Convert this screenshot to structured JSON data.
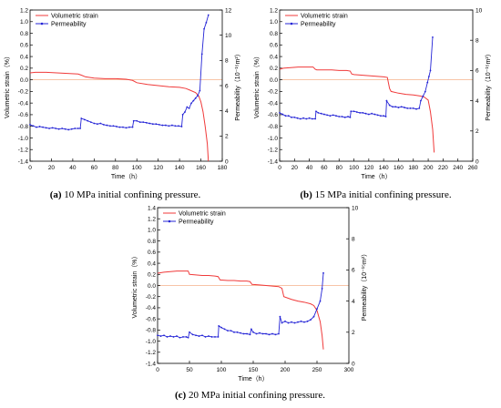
{
  "captions": [
    {
      "label": "(a)",
      "text": " 10 MPa initial confining pressure."
    },
    {
      "label": "(b)",
      "text": " 15 MPa initial confining pressure."
    },
    {
      "label": "(c)",
      "text": " 20 MPa initial confining pressure."
    }
  ],
  "colors": {
    "strain": "#f03a3a",
    "permeability": "#2424d6",
    "zero_line": "#f5b08a",
    "axis": "#000000"
  },
  "chart_data": [
    {
      "type": "line",
      "xlabel": "Time（h）",
      "ylabel_left": "Volumetric strain（%）",
      "ylabel_right": "Permeability（10⁻¹⁵m²）",
      "xlim": [
        0,
        180
      ],
      "xticks": [
        0,
        20,
        40,
        60,
        80,
        100,
        120,
        140,
        160,
        180
      ],
      "ylim_left": [
        -1.4,
        1.2
      ],
      "yticks_left": [
        -1.4,
        -1.2,
        -1.0,
        -0.8,
        -0.6,
        -0.4,
        -0.2,
        0.0,
        0.2,
        0.4,
        0.6,
        0.8,
        1.0,
        1.2
      ],
      "ylim_right": [
        0,
        12
      ],
      "yticks_right": [
        0,
        2,
        4,
        6,
        8,
        10,
        12
      ],
      "legend": [
        "Volumetric strain",
        "Permeability"
      ],
      "legend_position": "top-left",
      "strain": {
        "x": [
          0,
          5,
          15,
          25,
          35,
          45,
          48,
          52,
          60,
          70,
          80,
          90,
          96,
          100,
          110,
          120,
          130,
          140,
          146,
          150,
          155,
          158,
          160,
          162,
          164,
          166,
          167
        ],
        "y": [
          0.12,
          0.13,
          0.13,
          0.12,
          0.11,
          0.1,
          0.08,
          0.05,
          0.03,
          0.02,
          0.02,
          0.01,
          -0.01,
          -0.05,
          -0.08,
          -0.1,
          -0.12,
          -0.13,
          -0.15,
          -0.18,
          -0.22,
          -0.28,
          -0.38,
          -0.55,
          -0.8,
          -1.1,
          -1.4
        ]
      },
      "permeability": {
        "x": [
          0,
          3,
          6,
          9,
          12,
          15,
          18,
          21,
          24,
          27,
          30,
          33,
          36,
          39,
          42,
          45,
          47,
          48,
          51,
          54,
          57,
          60,
          63,
          66,
          69,
          72,
          75,
          78,
          81,
          84,
          87,
          90,
          93,
          96,
          97,
          100,
          103,
          106,
          109,
          112,
          115,
          118,
          121,
          124,
          127,
          130,
          133,
          136,
          139,
          142,
          143,
          145,
          147,
          149,
          151,
          153,
          155,
          157,
          159,
          161,
          163,
          165,
          167
        ],
        "y": [
          2.9,
          2.8,
          2.7,
          2.75,
          2.7,
          2.65,
          2.6,
          2.65,
          2.6,
          2.55,
          2.6,
          2.55,
          2.5,
          2.55,
          2.6,
          2.6,
          2.6,
          3.4,
          3.3,
          3.2,
          3.1,
          3.0,
          2.95,
          3.0,
          2.9,
          2.85,
          2.8,
          2.8,
          2.75,
          2.7,
          2.7,
          2.65,
          2.7,
          2.7,
          3.2,
          3.2,
          3.1,
          3.1,
          3.05,
          3.0,
          2.95,
          2.95,
          2.9,
          2.85,
          2.85,
          2.8,
          2.85,
          2.8,
          2.8,
          2.75,
          3.7,
          3.9,
          4.3,
          4.2,
          4.6,
          4.8,
          5.0,
          5.2,
          5.6,
          8.5,
          10.5,
          11.0,
          11.6
        ]
      }
    },
    {
      "type": "line",
      "xlabel": "Time（h）",
      "ylabel_left": "Volumetric strain（%）",
      "ylabel_right": "Permeability（10⁻¹⁵m²）",
      "xlim": [
        0,
        260
      ],
      "xticks": [
        0,
        20,
        40,
        60,
        80,
        100,
        120,
        140,
        160,
        180,
        200,
        220,
        240,
        260
      ],
      "ylim_left": [
        -1.4,
        1.2
      ],
      "yticks_left": [
        -1.4,
        -1.2,
        -1.0,
        -0.8,
        -0.6,
        -0.4,
        -0.2,
        0.0,
        0.2,
        0.4,
        0.6,
        0.8,
        1.0,
        1.2
      ],
      "ylim_right": [
        0,
        10
      ],
      "yticks_right": [
        0,
        2,
        4,
        6,
        8,
        10
      ],
      "legend": [
        "Volumetric strain",
        "Permeability"
      ],
      "legend_position": "top-left",
      "strain": {
        "x": [
          0,
          5,
          15,
          25,
          35,
          45,
          48,
          50,
          60,
          70,
          80,
          90,
          95,
          97,
          100,
          110,
          120,
          130,
          140,
          145,
          148,
          150,
          160,
          170,
          180,
          190,
          195,
          200,
          203,
          206,
          208
        ],
        "y": [
          0.18,
          0.2,
          0.21,
          0.22,
          0.22,
          0.22,
          0.18,
          0.17,
          0.17,
          0.17,
          0.16,
          0.16,
          0.15,
          0.1,
          0.09,
          0.08,
          0.07,
          0.06,
          0.05,
          0.04,
          -0.15,
          -0.2,
          -0.23,
          -0.25,
          -0.26,
          -0.28,
          -0.3,
          -0.35,
          -0.55,
          -0.85,
          -1.25
        ]
      },
      "permeability": {
        "x": [
          0,
          4,
          8,
          12,
          16,
          20,
          24,
          28,
          32,
          36,
          40,
          44,
          48,
          49,
          52,
          56,
          60,
          64,
          68,
          72,
          76,
          80,
          84,
          88,
          92,
          95,
          96,
          100,
          104,
          108,
          112,
          116,
          120,
          124,
          128,
          132,
          136,
          140,
          143,
          144,
          148,
          152,
          156,
          160,
          164,
          168,
          172,
          176,
          180,
          184,
          188,
          190,
          193,
          196,
          199,
          201,
          203,
          206
        ],
        "y": [
          3.2,
          3.1,
          3.0,
          3.0,
          2.9,
          2.9,
          2.85,
          2.8,
          2.85,
          2.8,
          2.85,
          2.8,
          2.8,
          3.3,
          3.2,
          3.15,
          3.1,
          3.05,
          3.0,
          3.05,
          3.0,
          2.95,
          2.95,
          2.9,
          2.95,
          2.9,
          3.3,
          3.3,
          3.25,
          3.2,
          3.2,
          3.15,
          3.1,
          3.15,
          3.1,
          3.05,
          3.0,
          3.0,
          2.95,
          4.0,
          3.7,
          3.6,
          3.6,
          3.55,
          3.6,
          3.55,
          3.5,
          3.5,
          3.5,
          3.45,
          3.5,
          4.0,
          4.3,
          4.6,
          5.2,
          5.6,
          6.0,
          8.2
        ]
      }
    },
    {
      "type": "line",
      "xlabel": "Time（h）",
      "ylabel_left": "Volumetric strain（%）",
      "ylabel_right": "Permeability（10⁻¹⁵m²）",
      "xlim": [
        0,
        300
      ],
      "xticks": [
        0,
        50,
        100,
        150,
        200,
        250,
        300
      ],
      "ylim_left": [
        -1.4,
        1.4
      ],
      "yticks_left": [
        -1.4,
        -1.2,
        -1.0,
        -0.8,
        -0.6,
        -0.4,
        -0.2,
        0.0,
        0.2,
        0.4,
        0.6,
        0.8,
        1.0,
        1.2,
        1.4
      ],
      "ylim_right": [
        0,
        10
      ],
      "yticks_right": [
        0,
        2,
        4,
        6,
        8,
        10
      ],
      "legend": [
        "Volumetric strain",
        "Permeability"
      ],
      "legend_position": "top-left",
      "strain": {
        "x": [
          0,
          10,
          20,
          30,
          40,
          48,
          50,
          60,
          70,
          80,
          90,
          95,
          98,
          110,
          120,
          130,
          140,
          145,
          148,
          160,
          170,
          180,
          190,
          195,
          198,
          210,
          220,
          230,
          240,
          245,
          250,
          255,
          258,
          260
        ],
        "y": [
          0.22,
          0.24,
          0.25,
          0.26,
          0.26,
          0.26,
          0.2,
          0.19,
          0.18,
          0.18,
          0.17,
          0.16,
          0.1,
          0.09,
          0.09,
          0.08,
          0.08,
          0.07,
          0.02,
          0.01,
          0.0,
          -0.01,
          -0.02,
          -0.05,
          -0.2,
          -0.25,
          -0.28,
          -0.3,
          -0.33,
          -0.36,
          -0.45,
          -0.65,
          -0.9,
          -1.15
        ]
      },
      "permeability": {
        "x": [
          0,
          5,
          10,
          15,
          20,
          25,
          30,
          35,
          40,
          45,
          48,
          50,
          55,
          60,
          65,
          70,
          75,
          80,
          85,
          90,
          95,
          96,
          100,
          105,
          110,
          115,
          120,
          125,
          130,
          135,
          140,
          145,
          147,
          150,
          155,
          160,
          165,
          170,
          175,
          180,
          185,
          190,
          192,
          195,
          200,
          205,
          210,
          215,
          220,
          225,
          230,
          235,
          240,
          245,
          250,
          255,
          258,
          260
        ],
        "y": [
          1.8,
          1.75,
          1.8,
          1.7,
          1.75,
          1.7,
          1.75,
          1.65,
          1.7,
          1.7,
          1.65,
          2.0,
          1.85,
          1.8,
          1.75,
          1.8,
          1.7,
          1.75,
          1.7,
          1.7,
          1.7,
          2.4,
          2.3,
          2.2,
          2.1,
          2.1,
          2.0,
          2.0,
          1.95,
          1.9,
          1.9,
          1.85,
          2.2,
          2.0,
          1.9,
          1.95,
          1.9,
          1.9,
          1.85,
          1.9,
          1.85,
          1.9,
          3.0,
          2.6,
          2.7,
          2.6,
          2.65,
          2.6,
          2.65,
          2.7,
          2.65,
          2.7,
          2.8,
          3.0,
          3.5,
          4.0,
          4.8,
          5.8
        ]
      }
    }
  ]
}
